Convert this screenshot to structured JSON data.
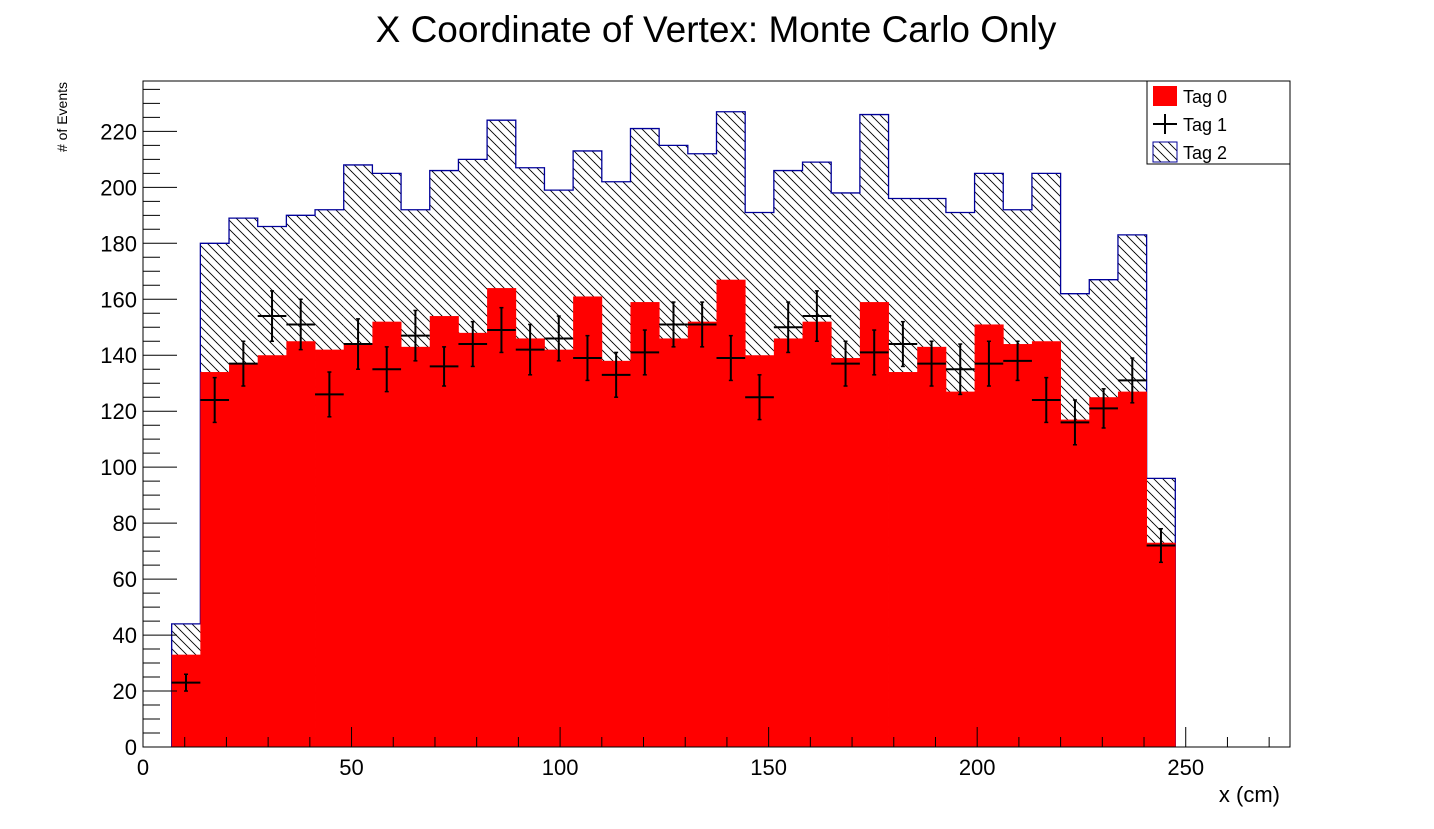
{
  "chart_data": {
    "type": "histogram",
    "title": "X Coordinate of Vertex: Monte Carlo Only",
    "xlabel": "x (cm)",
    "ylabel": "# of Events",
    "xlim": [
      0,
      275
    ],
    "ylim": [
      0,
      238
    ],
    "bin_width": 6.875,
    "bin_edges_start": 6.875,
    "x_ticks": [
      "0",
      "50",
      "100",
      "150",
      "200",
      "250"
    ],
    "y_ticks": [
      "0",
      "20",
      "40",
      "60",
      "80",
      "100",
      "120",
      "140",
      "160",
      "180",
      "200",
      "220"
    ],
    "legend": {
      "position": "top-right",
      "entries": [
        "Tag 0",
        "Tag 1",
        "Tag 2"
      ]
    },
    "series": [
      {
        "name": "Tag 0",
        "style": "filled",
        "color": "#ff0000",
        "values": [
          33,
          134,
          137,
          140,
          145,
          142,
          144,
          152,
          143,
          154,
          148,
          164,
          146,
          142,
          161,
          138,
          159,
          146,
          152,
          167,
          140,
          146,
          152,
          139,
          159,
          134,
          143,
          127,
          151,
          144,
          145,
          117,
          125,
          127,
          73
        ]
      },
      {
        "name": "Tag 1",
        "style": "points-with-errors",
        "color": "#000000",
        "values": [
          23,
          124,
          137,
          154,
          151,
          126,
          144,
          135,
          147,
          136,
          144,
          149,
          142,
          146,
          139,
          133,
          141,
          151,
          151,
          139,
          125,
          150,
          154,
          137,
          141,
          144,
          137,
          135,
          137,
          138,
          124,
          116,
          121,
          131,
          72
        ],
        "errors": [
          3,
          8,
          8,
          9,
          9,
          8,
          9,
          8,
          9,
          7,
          8,
          8,
          9,
          8,
          8,
          8,
          8,
          8,
          8,
          8,
          8,
          9,
          9,
          8,
          8,
          8,
          8,
          9,
          8,
          7,
          8,
          8,
          7,
          8,
          6
        ]
      },
      {
        "name": "Tag 2",
        "style": "hatched",
        "color": "#000099",
        "values": [
          44,
          180,
          189,
          186,
          190,
          192,
          208,
          205,
          192,
          206,
          210,
          224,
          207,
          199,
          213,
          202,
          221,
          215,
          212,
          227,
          191,
          206,
          209,
          198,
          226,
          196,
          196,
          191,
          205,
          192,
          205,
          162,
          167,
          183,
          96
        ]
      }
    ]
  }
}
